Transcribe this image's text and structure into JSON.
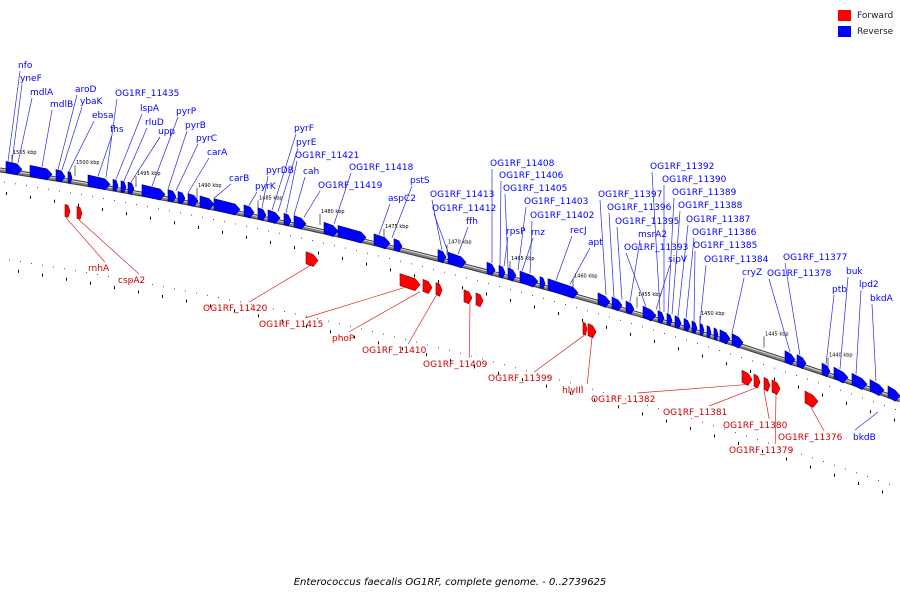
{
  "legend": [
    {
      "label": "Forward",
      "color": "#ff0000"
    },
    {
      "label": "Reverse",
      "color": "#0000ff"
    }
  ],
  "caption": "Enterococcus faecalis OG1RF, complete genome. - 0..2739625",
  "colors": {
    "forward": "#ff0000",
    "reverse": "#0000ff",
    "backbone": "#808080"
  },
  "scale_labels": [
    "1505 kbp",
    "1500 kbp",
    "1495 kbp",
    "1490 kbp",
    "1485 kbp",
    "1480 kbp",
    "1475 kbp",
    "1470 kbp",
    "1465 kbp",
    "1460 kbp",
    "1455 kbp",
    "1450 kbp",
    "1445 kbp",
    "1440 kbp"
  ],
  "reverse_genes": [
    "nfo",
    "yneF",
    "mdlA",
    "mdlB",
    "aroD",
    "ybaK",
    "ebsa",
    "fhs",
    "OG1RF_11435",
    "lspA",
    "rluD",
    "upp",
    "pyrP",
    "pyrB",
    "pyrC",
    "carA",
    "carB",
    "pyrK",
    "pyrDB",
    "pyrF",
    "pyrE",
    "OG1RF_11421",
    "cah",
    "OG1RF_11419",
    "OG1RF_11418",
    "pstS",
    "aspC2",
    "OG1RF_11413",
    "OG1RF_11412",
    "ffh",
    "OG1RF_11408",
    "OG1RF_11406",
    "OG1RF_11405",
    "OG1RF_11403",
    "rpsP",
    "rnz",
    "OG1RF_11402",
    "recJ",
    "apt",
    "OG1RF_11397",
    "OG1RF_11396",
    "OG1RF_11395",
    "msrA2",
    "OG1RF_11393",
    "sipV",
    "OG1RF_11392",
    "OG1RF_11390",
    "OG1RF_11389",
    "OG1RF_11388",
    "OG1RF_11387",
    "OG1RF_11386",
    "OG1RF_11385",
    "OG1RF_11384",
    "cryZ",
    "OG1RF_11378",
    "OG1RF_11377",
    "ptb",
    "buk",
    "lpd2",
    "bkdA",
    "bkdB"
  ],
  "forward_genes": [
    "rnhA",
    "cspA2",
    "OG1RF_11420",
    "OG1RF_11415",
    "phoP",
    "OG1RF_11410",
    "OG1RF_11409",
    "OG1RF_11399",
    "hlyIII",
    "OG1RF_11382",
    "OG1RF_11381",
    "OG1RF_11380",
    "OG1RF_11379",
    "OG1RF_11376"
  ]
}
